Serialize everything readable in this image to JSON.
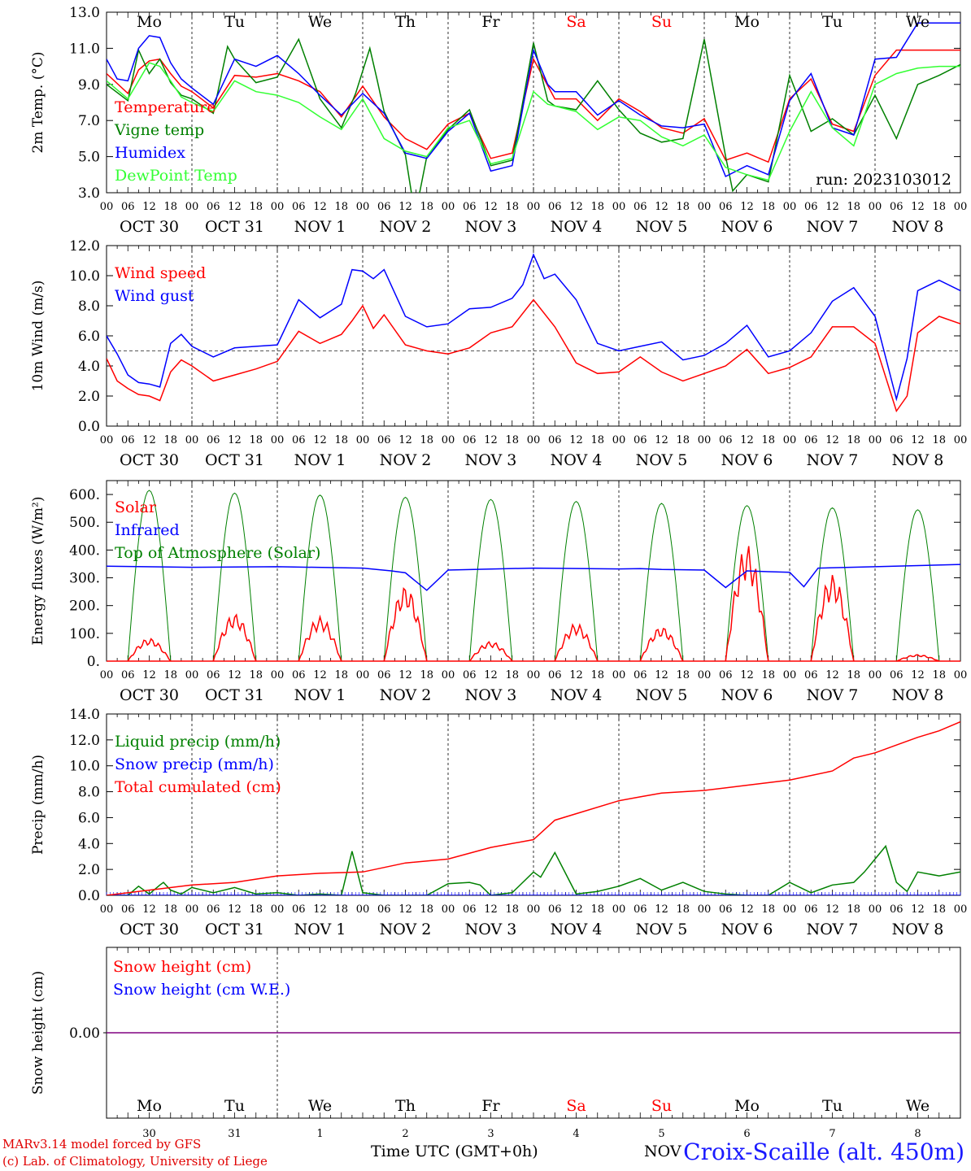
{
  "run_label": "run: 2023103012",
  "day_names": [
    "Mo",
    "Tu",
    "We",
    "Th",
    "Fr",
    "Sa",
    "Su",
    "Mo",
    "Tu",
    "We"
  ],
  "weekend_days": [
    5,
    6
  ],
  "date_labels": [
    "OCT 30",
    "OCT 31",
    "NOV  1",
    "NOV  2",
    "NOV  3",
    "NOV  4",
    "NOV  5",
    "NOV  6",
    "NOV  7",
    "NOV  8"
  ],
  "hour_labels": [
    "00",
    "06",
    "12",
    "18"
  ],
  "hour_end_label": "00",
  "bottom_day_numbers": [
    "30",
    "31",
    "1",
    "2",
    "3",
    "4",
    "5",
    "6",
    "7",
    "8"
  ],
  "footer": {
    "credit_line1": "MARv3.14 model forced by GFS",
    "credit_line2": "(c) Lab. of Climatology, University of Liege",
    "time_label": "Time UTC (GMT+0h)",
    "month_label": "NOV",
    "station": "Croix-Scaille (alt. 450m)"
  },
  "colors": {
    "red": "#ff0000",
    "green": "#008000",
    "blue": "#0000ff",
    "lightgreen": "#33ff33",
    "purple": "#800080"
  },
  "chart_data": [
    {
      "type": "line",
      "ylabel": "2m Temp. (°C)",
      "ylim": [
        3.0,
        13.0
      ],
      "yticks": [
        "3.0",
        "5.0",
        "7.0",
        "9.0",
        "11.0",
        "13.0"
      ],
      "x_unit": "hours since 2023-10-30 00 UTC",
      "legend": [
        {
          "name": "Temperature",
          "color": "#ff0000"
        },
        {
          "name": "Vigne temp",
          "color": "#008000"
        },
        {
          "name": "Humidex",
          "color": "#0000ff"
        },
        {
          "name": "DewPoint Temp",
          "color": "#33ff33"
        }
      ],
      "series": [
        {
          "name": "Temperature",
          "color": "#ff0000",
          "x": [
            0,
            6,
            9,
            12,
            15,
            18,
            21,
            24,
            30,
            36,
            42,
            48,
            54,
            60,
            66,
            72,
            78,
            84,
            90,
            96,
            102,
            108,
            114,
            120,
            126,
            132,
            138,
            144,
            150,
            156,
            162,
            168,
            174,
            180,
            186,
            192,
            198,
            204,
            210,
            216,
            222,
            228,
            234,
            240
          ],
          "y": [
            9.6,
            8.5,
            9.8,
            10.3,
            10.4,
            9.6,
            8.9,
            8.6,
            7.7,
            9.5,
            9.4,
            9.6,
            9.2,
            8.6,
            7.2,
            8.9,
            7.2,
            6.0,
            5.4,
            6.8,
            7.4,
            4.9,
            5.2,
            10.4,
            8.2,
            8.2,
            7.0,
            8.2,
            7.5,
            6.6,
            6.3,
            7.1,
            4.8,
            5.2,
            4.7,
            8.2,
            9.3,
            6.8,
            6.4,
            9.5,
            10.9,
            10.9,
            10.9,
            10.9
          ]
        },
        {
          "name": "Vigne temp",
          "color": "#008000",
          "x": [
            0,
            6,
            9,
            12,
            15,
            18,
            21,
            24,
            30,
            34,
            36,
            42,
            48,
            54,
            60,
            66,
            70,
            74,
            76,
            78,
            84,
            86,
            88,
            90,
            96,
            102,
            108,
            114,
            120,
            124,
            126,
            132,
            138,
            144,
            150,
            156,
            162,
            168,
            174,
            176,
            180,
            186,
            192,
            198,
            204,
            210,
            216,
            222,
            228,
            234,
            240
          ],
          "y": [
            9.0,
            8.1,
            10.9,
            9.6,
            10.4,
            9.1,
            8.4,
            8.2,
            7.4,
            11.1,
            10.4,
            9.1,
            9.4,
            11.5,
            8.2,
            6.6,
            8.5,
            11.0,
            9.3,
            7.5,
            5.1,
            2.6,
            3.0,
            5.0,
            6.5,
            7.6,
            4.5,
            4.8,
            11.3,
            8.1,
            7.8,
            7.6,
            9.2,
            7.6,
            6.3,
            5.8,
            6.0,
            11.5,
            5.0,
            3.1,
            4.0,
            3.6,
            9.5,
            6.4,
            7.1,
            6.2,
            8.4,
            6.0,
            9.0,
            9.5,
            10.1
          ]
        },
        {
          "name": "Humidex",
          "color": "#0000ff",
          "x": [
            0,
            3,
            6,
            9,
            12,
            15,
            18,
            21,
            24,
            30,
            36,
            42,
            48,
            54,
            60,
            66,
            72,
            78,
            84,
            90,
            96,
            102,
            108,
            114,
            120,
            124,
            126,
            132,
            138,
            144,
            150,
            156,
            162,
            168,
            174,
            180,
            186,
            192,
            198,
            204,
            210,
            216,
            222,
            228,
            234,
            240
          ],
          "y": [
            10.4,
            9.3,
            9.2,
            11.0,
            11.7,
            11.6,
            10.2,
            9.3,
            8.8,
            7.9,
            10.4,
            10.0,
            10.6,
            9.6,
            8.4,
            7.3,
            8.5,
            7.4,
            5.2,
            4.9,
            6.4,
            7.4,
            4.2,
            4.5,
            10.9,
            9.0,
            8.6,
            8.6,
            7.3,
            8.1,
            7.3,
            6.7,
            6.6,
            6.8,
            3.9,
            4.5,
            4.0,
            8.1,
            9.6,
            6.6,
            6.2,
            10.4,
            10.5,
            12.4,
            12.4,
            12.4
          ]
        },
        {
          "name": "DewPoint Temp",
          "color": "#33ff33",
          "x": [
            0,
            6,
            12,
            15,
            18,
            21,
            24,
            30,
            36,
            42,
            48,
            54,
            60,
            66,
            72,
            78,
            84,
            90,
            96,
            102,
            108,
            114,
            120,
            124,
            126,
            132,
            138,
            144,
            150,
            156,
            162,
            168,
            174,
            180,
            186,
            192,
            198,
            204,
            210,
            216,
            222,
            228,
            234,
            240
          ],
          "y": [
            9.2,
            8.2,
            10.2,
            10.0,
            9.2,
            8.3,
            8.0,
            7.5,
            9.2,
            8.6,
            8.4,
            8.0,
            7.2,
            6.5,
            8.2,
            6.0,
            5.3,
            5.0,
            6.6,
            7.0,
            4.6,
            4.9,
            8.6,
            7.9,
            7.8,
            7.5,
            6.5,
            7.2,
            7.0,
            6.1,
            5.6,
            6.2,
            4.4,
            4.0,
            3.7,
            6.4,
            8.6,
            6.6,
            5.6,
            9.0,
            9.6,
            9.9,
            10.0,
            10.0
          ]
        }
      ]
    },
    {
      "type": "line",
      "ylabel": "10m Wind (m/s)",
      "ylim": [
        0.0,
        12.0
      ],
      "yticks": [
        "0.0",
        "2.0",
        "4.0",
        "6.0",
        "8.0",
        "10.0",
        "12.0"
      ],
      "reference_line": 5.0,
      "legend": [
        {
          "name": "Wind speed",
          "color": "#ff0000"
        },
        {
          "name": "Wind gust",
          "color": "#0000ff"
        }
      ],
      "series": [
        {
          "name": "Wind speed",
          "color": "#ff0000",
          "x": [
            0,
            3,
            6,
            9,
            12,
            15,
            18,
            21,
            24,
            30,
            36,
            42,
            48,
            54,
            60,
            66,
            69,
            72,
            75,
            78,
            84,
            90,
            96,
            102,
            108,
            114,
            120,
            126,
            132,
            138,
            144,
            150,
            156,
            162,
            168,
            174,
            180,
            186,
            192,
            198,
            204,
            210,
            216,
            222,
            225,
            228,
            234,
            240
          ],
          "y": [
            4.5,
            3.0,
            2.5,
            2.1,
            2.0,
            1.7,
            3.6,
            4.4,
            4.0,
            3.0,
            3.4,
            3.8,
            4.3,
            6.3,
            5.5,
            6.1,
            7.0,
            8.0,
            6.5,
            7.4,
            5.4,
            5.0,
            4.8,
            5.2,
            6.2,
            6.6,
            8.4,
            6.6,
            4.2,
            3.5,
            3.6,
            4.6,
            3.6,
            3.0,
            3.5,
            4.0,
            5.1,
            3.5,
            3.9,
            4.6,
            6.6,
            6.6,
            5.5,
            1.0,
            2.0,
            6.2,
            7.3,
            6.8
          ]
        },
        {
          "name": "Wind gust",
          "color": "#0000ff",
          "x": [
            0,
            3,
            6,
            9,
            12,
            15,
            18,
            21,
            24,
            30,
            36,
            42,
            48,
            54,
            60,
            66,
            69,
            72,
            75,
            78,
            84,
            90,
            96,
            102,
            108,
            114,
            117,
            120,
            123,
            126,
            132,
            138,
            144,
            150,
            156,
            162,
            168,
            174,
            180,
            186,
            192,
            198,
            204,
            210,
            216,
            222,
            225,
            228,
            234,
            240
          ],
          "y": [
            6.0,
            4.8,
            3.4,
            2.9,
            2.8,
            2.6,
            5.5,
            6.1,
            5.3,
            4.6,
            5.2,
            5.3,
            5.4,
            8.4,
            7.2,
            8.1,
            10.4,
            10.3,
            9.8,
            10.4,
            7.3,
            6.6,
            6.8,
            7.8,
            7.9,
            8.5,
            9.4,
            11.4,
            9.8,
            10.1,
            8.4,
            5.5,
            5.0,
            5.3,
            5.6,
            4.4,
            4.7,
            5.5,
            6.7,
            4.6,
            5.0,
            6.2,
            8.3,
            9.2,
            7.3,
            1.8,
            4.5,
            9.0,
            9.7,
            9.0
          ]
        }
      ]
    },
    {
      "type": "line",
      "ylabel": "Energy fluxes (W/m²)",
      "ylim": [
        0.0,
        650.0
      ],
      "yticks": [
        "0.",
        "100.",
        "200.",
        "300.",
        "400.",
        "500.",
        "600."
      ],
      "legend": [
        {
          "name": "Solar",
          "color": "#ff0000"
        },
        {
          "name": "Infrared",
          "color": "#0000ff"
        },
        {
          "name": "Top of Atmosphere (Solar)",
          "color": "#008000"
        }
      ],
      "toa_peaks": [
        615,
        605,
        598,
        590,
        582,
        575,
        568,
        560,
        552,
        545
      ],
      "solar_peaks": [
        70,
        145,
        135,
        230,
        60,
        115,
        105,
        355,
        265,
        20
      ],
      "series": [
        {
          "name": "Infrared",
          "color": "#0000ff",
          "x": [
            0,
            24,
            48,
            72,
            80,
            84,
            90,
            96,
            120,
            144,
            150,
            156,
            168,
            174,
            178,
            180,
            186,
            192,
            196,
            200,
            216,
            240
          ],
          "y": [
            342,
            338,
            340,
            335,
            325,
            318,
            255,
            328,
            335,
            332,
            333,
            330,
            328,
            265,
            305,
            325,
            322,
            320,
            268,
            335,
            340,
            348
          ]
        }
      ]
    },
    {
      "type": "line",
      "ylabel": "Precip (mm/h)",
      "ylim": [
        0.0,
        14.0
      ],
      "yticks": [
        "0.0",
        "2.0",
        "4.0",
        "6.0",
        "8.0",
        "10.0",
        "12.0",
        "14.0"
      ],
      "legend": [
        {
          "name": "Liquid precip (mm/h)",
          "color": "#008000"
        },
        {
          "name": "Snow precip (mm/h)",
          "color": "#0000ff"
        },
        {
          "name": "Total cumulated (cm)",
          "color": "#ff0000"
        }
      ],
      "series": [
        {
          "name": "Liquid precip (mm/h)",
          "color": "#008000",
          "x": [
            0,
            6,
            9,
            12,
            15,
            16,
            18,
            21,
            24,
            30,
            36,
            42,
            48,
            54,
            60,
            66,
            69,
            72,
            75,
            78,
            84,
            90,
            96,
            102,
            105,
            108,
            114,
            120,
            122,
            126,
            132,
            138,
            144,
            150,
            156,
            162,
            168,
            174,
            180,
            186,
            192,
            198,
            204,
            210,
            213,
            216,
            219,
            222,
            225,
            228,
            234,
            240
          ],
          "y": [
            0,
            0,
            0.7,
            0.1,
            0.8,
            1.0,
            0.4,
            0.1,
            0.6,
            0.2,
            0.6,
            0.1,
            0.2,
            0,
            0.1,
            0,
            3.4,
            0.2,
            0.1,
            0,
            0,
            0,
            0.9,
            1.0,
            0.8,
            0,
            0.2,
            1.8,
            1.4,
            3.3,
            0.1,
            0.3,
            0.7,
            1.3,
            0.4,
            1.0,
            0.3,
            0.1,
            0,
            0,
            1.0,
            0.2,
            0.8,
            1.0,
            1.8,
            2.8,
            3.8,
            1.0,
            0.3,
            1.8,
            1.5,
            1.8
          ]
        },
        {
          "name": "Snow precip (mm/h)",
          "color": "#0000ff",
          "x": [
            0,
            240
          ],
          "y": [
            0,
            0
          ]
        },
        {
          "name": "Total cumulated (cm)",
          "color": "#ff0000",
          "x": [
            0,
            12,
            24,
            36,
            48,
            60,
            72,
            84,
            96,
            108,
            120,
            126,
            132,
            144,
            150,
            156,
            168,
            180,
            192,
            204,
            210,
            216,
            222,
            228,
            234,
            240
          ],
          "y": [
            0,
            0.4,
            0.8,
            1.0,
            1.5,
            1.7,
            1.8,
            2.5,
            2.8,
            3.7,
            4.3,
            5.8,
            6.3,
            7.3,
            7.6,
            7.9,
            8.1,
            8.5,
            8.9,
            9.6,
            10.6,
            11.0,
            11.6,
            12.2,
            12.7,
            13.4
          ]
        }
      ]
    },
    {
      "type": "line",
      "ylabel": "Snow height (cm)",
      "yticks": [
        "0.00"
      ],
      "legend": [
        {
          "name": "Snow height (cm)",
          "color": "#ff0000"
        },
        {
          "name": "Snow height (cm W.E.)",
          "color": "#0000ff"
        }
      ],
      "series": [
        {
          "name": "Snow height (cm)",
          "color": "#800080",
          "x": [
            0,
            240
          ],
          "y": [
            0,
            0
          ]
        }
      ]
    }
  ]
}
